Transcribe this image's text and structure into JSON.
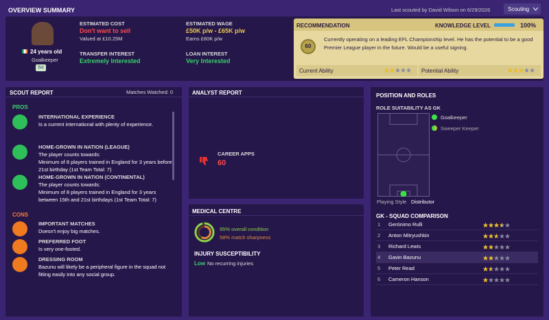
{
  "header": {
    "title": "OVERVIEW SUMMARY",
    "last_scouted": "Last scouted by David Wilson on 6/29/2026",
    "dropdown": "Scouting"
  },
  "player": {
    "age": "24 years old",
    "position": "Goalkeeper",
    "badge": "Sct"
  },
  "overview": {
    "estimated_cost": {
      "label": "ESTIMATED COST",
      "value": "Don't want to sell",
      "note": "Valued at £10.25M"
    },
    "estimated_wage": {
      "label": "ESTIMATED WAGE",
      "value": "£50K p/w - £65K p/w",
      "note": "Earns £60K p/w"
    },
    "transfer_interest": {
      "label": "TRANSFER INTEREST",
      "value": "Extremely Interested"
    },
    "loan_interest": {
      "label": "LOAN INTEREST",
      "value": "Very Interested"
    }
  },
  "recommendation": {
    "title": "RECOMMENDATION",
    "knowledge_label": "KNOWLEDGE LEVEL",
    "knowledge": 100,
    "knowledge_text": "100%",
    "score": "60",
    "text": "Currently operating on a leading EFL Championship level. He has the potential to be a good Premier League player in the future. Would be a useful signing.",
    "current_ability": {
      "label": "Current Ability",
      "stars": 2
    },
    "potential_ability": {
      "label": "Potential Ability",
      "stars": 3
    }
  },
  "scout_report": {
    "title": "SCOUT REPORT",
    "matches": "Matches Watched: 0",
    "pros_label": "PROS",
    "cons_label": "CONS",
    "pros": [
      {
        "title": "INTERNATIONAL EXPERIENCE",
        "text": "Is a current international with plenty of experience."
      },
      {
        "title": "HOME-GROWN IN NATION (LEAGUE)",
        "text": "The player counts towards:",
        "detail": "Minimum of 8 players trained in England for 3 years before 21st birthday (1st Team Total: 7)"
      },
      {
        "title": "HOME-GROWN IN NATION (CONTINENTAL)",
        "text": "The player counts towards:",
        "detail": "Minimum of 8 players trained in England for 3 years between 15th and 21st birthdays (1st Team Total: 7)"
      }
    ],
    "cons": [
      {
        "title": "IMPORTANT MATCHES",
        "text": "Doesn't enjoy big matches."
      },
      {
        "title": "PREFERRED FOOT",
        "text": "Is very one-footed."
      },
      {
        "title": "DRESSING ROOM",
        "text": "Bazunu will likely be a peripheral figure in the squad not fitting easily into any social group."
      }
    ]
  },
  "analyst": {
    "title": "ANALYST REPORT",
    "apps_label": "CAREER APPS",
    "apps": "60"
  },
  "medical": {
    "title": "MEDICAL CENTRE",
    "condition": "95% overall condition",
    "sharpness": "58% match sharpness",
    "injury_title": "INJURY SUSCEPTIBILITY",
    "injury_level": "Low",
    "injury_text": "No recurring injuries"
  },
  "position": {
    "title": "POSITION AND ROLES",
    "suitability": "ROLE SUITABILITY AS GK",
    "roles": [
      "Goalkeeper",
      "Sweeper Keeper"
    ],
    "playing_style_label": "Playing Style",
    "playing_style": "Distributor",
    "comparison_title": "GK - SQUAD COMPARISON",
    "squad": [
      {
        "rank": "1",
        "name": "Gerónimo Rulli",
        "stars": 3.5
      },
      {
        "rank": "2",
        "name": "Anton Mitryushkin",
        "stars": 2.5
      },
      {
        "rank": "3",
        "name": "Richard Lewis",
        "stars": 2
      },
      {
        "rank": "4",
        "name": "Gavin Bazunu",
        "stars": 2
      },
      {
        "rank": "5",
        "name": "Peter Read",
        "stars": 1.5
      },
      {
        "rank": "6",
        "name": "Cameron Hanson",
        "stars": 1
      }
    ]
  }
}
